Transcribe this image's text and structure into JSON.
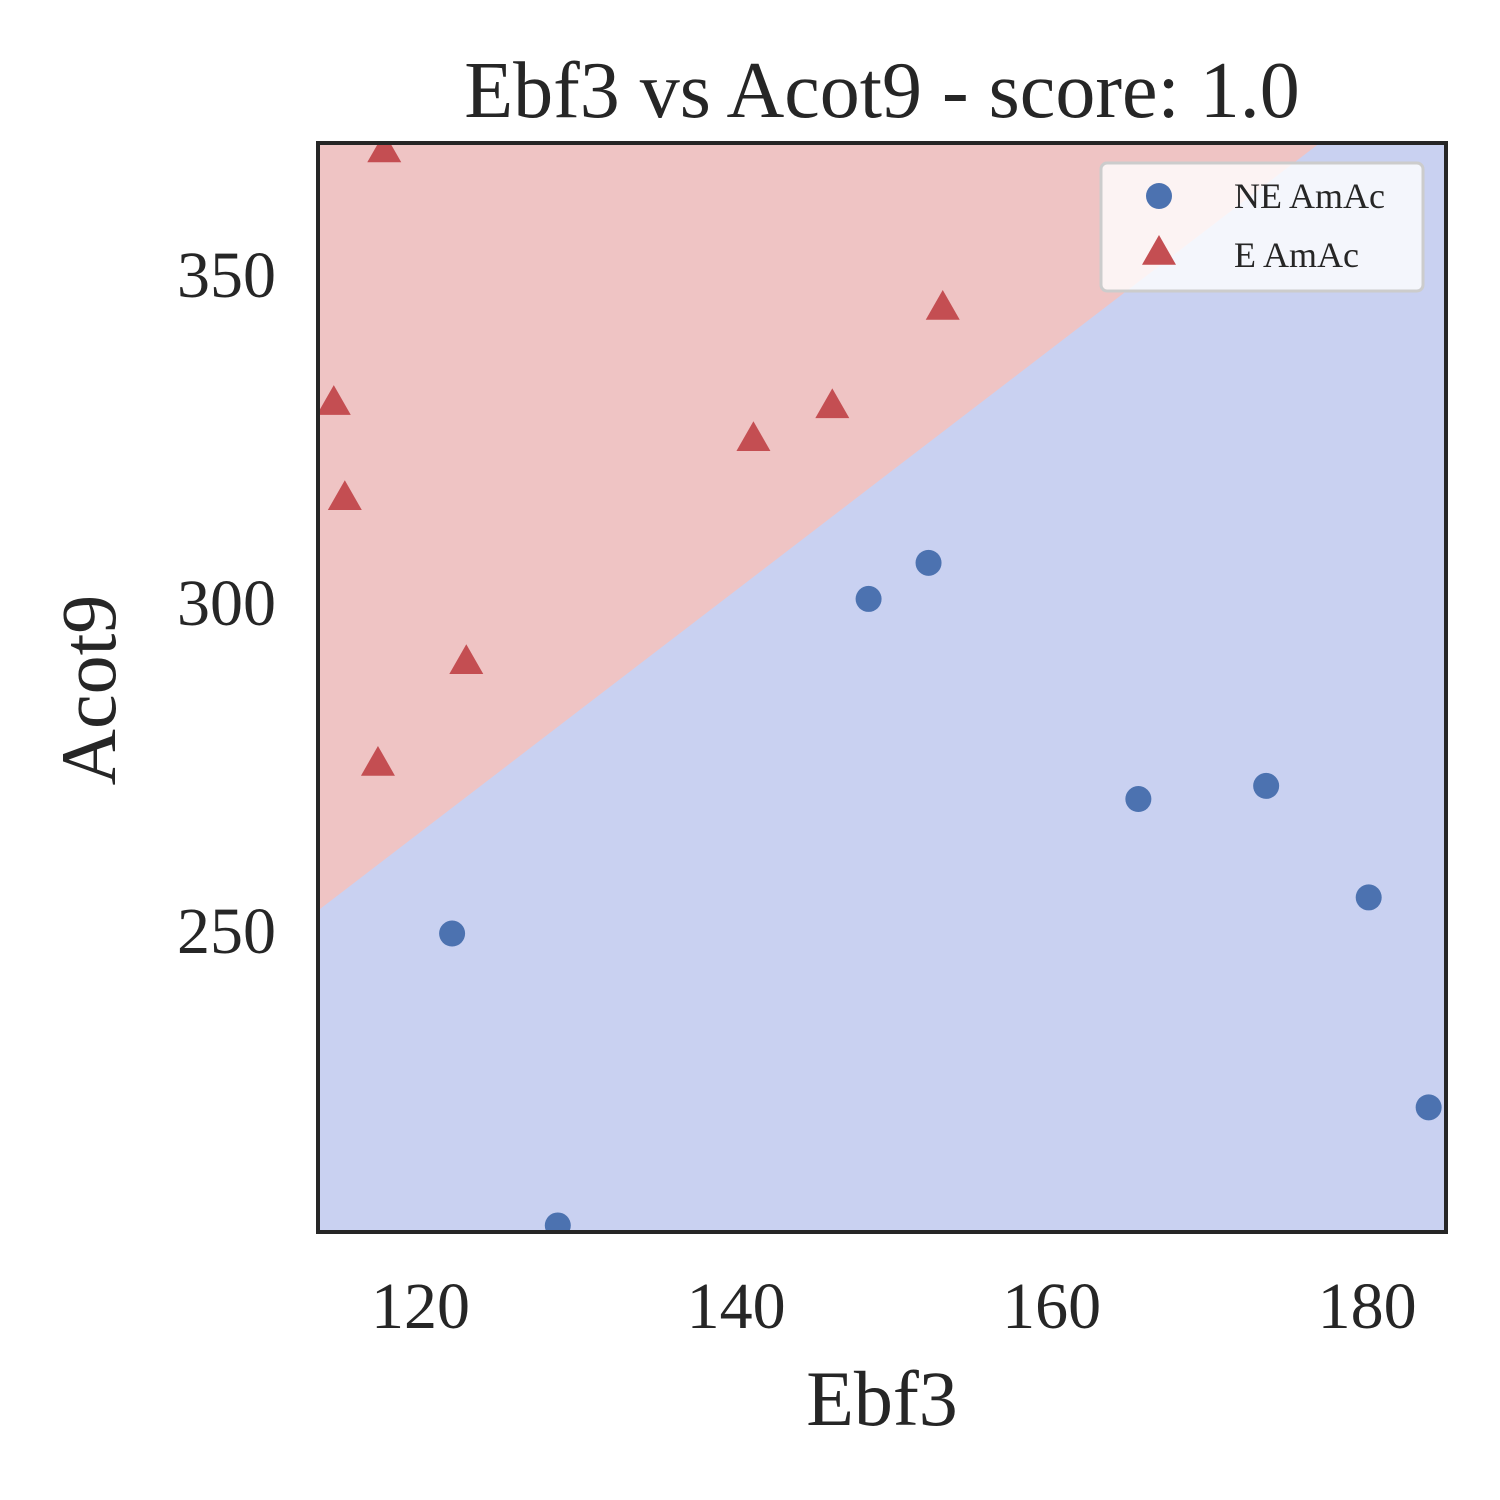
{
  "chart_data": {
    "type": "scatter",
    "title": "Ebf3 vs Acot9 - score: 1.0",
    "xlabel": "Ebf3",
    "ylabel": "Acot9",
    "xlim": [
      113.5,
      185.0
    ],
    "ylim": [
      204.0,
      370.0
    ],
    "x_ticks": [
      120,
      140,
      160,
      180
    ],
    "y_ticks": [
      250,
      300,
      350
    ],
    "grid": false,
    "legend_position": "top-right",
    "decision_boundary": {
      "points": [
        [
          113.5,
          253.0
        ],
        [
          177.0,
          370.0
        ]
      ],
      "region_above_color": "#efc4c4",
      "region_below_color": "#c9d1f1"
    },
    "series": [
      {
        "name": "NE AmAc",
        "marker": "circle",
        "color": "#4c72b0",
        "points": [
          [
            122.0,
            249.5
          ],
          [
            128.7,
            205.0
          ],
          [
            148.4,
            300.5
          ],
          [
            152.2,
            306.0
          ],
          [
            165.5,
            270.0
          ],
          [
            173.6,
            272.0
          ],
          [
            180.1,
            255.0
          ],
          [
            183.9,
            223.0
          ]
        ]
      },
      {
        "name": "E AmAc",
        "marker": "triangle",
        "color": "#c44e52",
        "points": [
          [
            117.7,
            369.0
          ],
          [
            114.5,
            330.5
          ],
          [
            115.2,
            316.0
          ],
          [
            117.3,
            275.5
          ],
          [
            122.9,
            291.0
          ],
          [
            141.1,
            325.0
          ],
          [
            146.1,
            330.0
          ],
          [
            153.1,
            345.0
          ]
        ]
      }
    ]
  }
}
